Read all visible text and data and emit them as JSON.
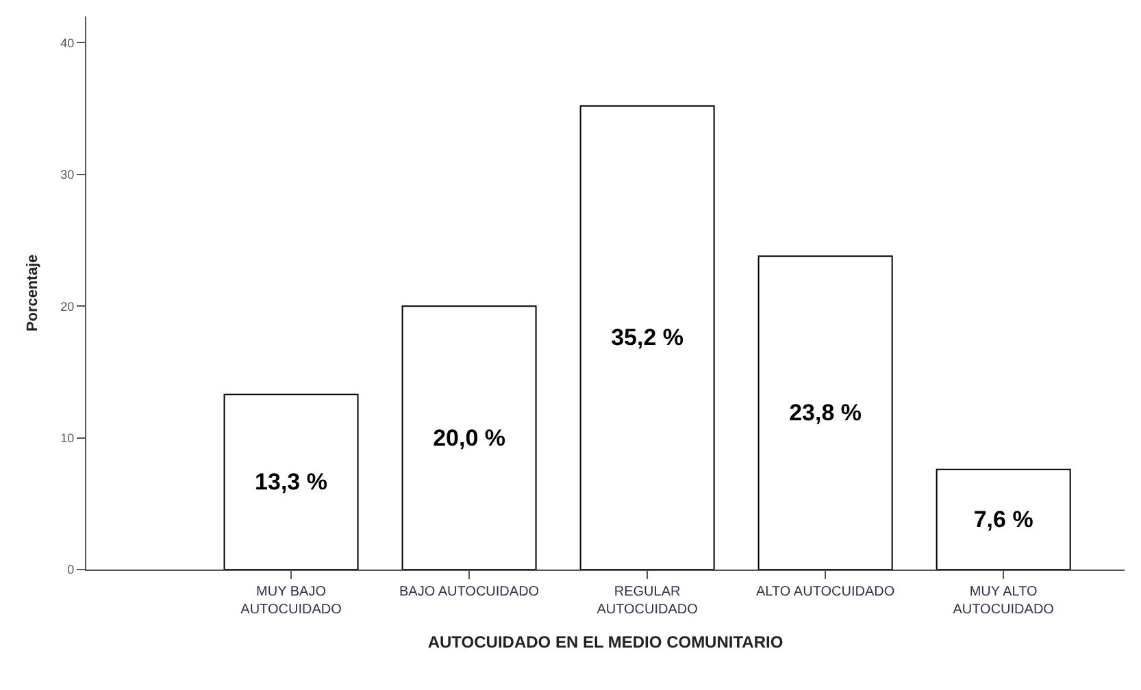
{
  "chart_data": {
    "type": "bar",
    "xlabel": "AUTOCUIDADO EN EL MEDIO COMUNITARIO",
    "ylabel": "Porcentaje",
    "categories": [
      "MUY BAJO\nAUTOCUIDADO",
      "BAJO AUTOCUIDADO",
      "REGULAR\nAUTOCUIDADO",
      "ALTO AUTOCUIDADO",
      "MUY ALTO\nAUTOCUIDADO"
    ],
    "values": [
      13.3,
      20.0,
      35.2,
      23.8,
      7.6
    ],
    "value_labels": [
      "13,3 %",
      "20,0 %",
      "35,2 %",
      "23,8 %",
      "7,6 %"
    ],
    "color": "#ffffff",
    "ylim": [
      0,
      42
    ],
    "yticks": [
      0,
      10,
      20,
      30,
      40
    ]
  }
}
